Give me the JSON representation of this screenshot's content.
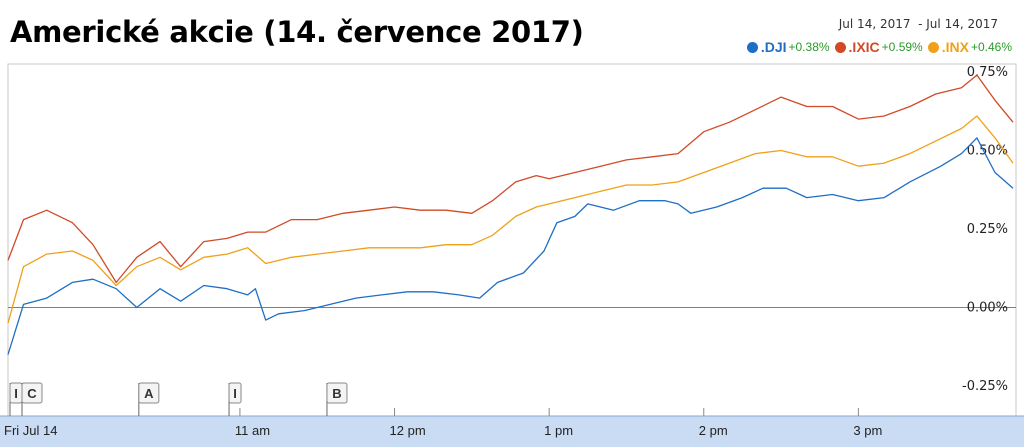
{
  "title": "Americké akcie (14. července 2017)",
  "date_range": "Jul 14, 2017  - Jul 14, 2017",
  "chart_data": {
    "type": "line",
    "x_range": [
      "09:30",
      "16:00"
    ],
    "x_ticks": [
      {
        "label": "Fri Jul 14",
        "time": "09:30"
      },
      {
        "label": "11 am",
        "time": "11:00"
      },
      {
        "label": "12 pm",
        "time": "12:00"
      },
      {
        "label": "1 pm",
        "time": "13:00"
      },
      {
        "label": "2 pm",
        "time": "14:00"
      },
      {
        "label": "3 pm",
        "time": "15:00"
      }
    ],
    "y_ticks": [
      "0.75%",
      "0.50%",
      "0.25%",
      "0.00%",
      "-0.25%"
    ],
    "ylim": [
      -0.25,
      0.75
    ],
    "baseline": 0,
    "grid": false,
    "legend_position": "top-right",
    "series": [
      {
        "name": ".DJI",
        "change": "+0.38%",
        "color": "#1e6fc4",
        "points": [
          [
            "09:30",
            -0.15
          ],
          [
            "09:36",
            0.01
          ],
          [
            "09:45",
            0.03
          ],
          [
            "09:55",
            0.08
          ],
          [
            "10:03",
            0.09
          ],
          [
            "10:12",
            0.06
          ],
          [
            "10:20",
            0.0
          ],
          [
            "10:29",
            0.06
          ],
          [
            "10:37",
            0.02
          ],
          [
            "10:46",
            0.07
          ],
          [
            "10:55",
            0.06
          ],
          [
            "11:03",
            0.04
          ],
          [
            "11:06",
            0.06
          ],
          [
            "11:10",
            -0.04
          ],
          [
            "11:15",
            -0.02
          ],
          [
            "11:25",
            -0.01
          ],
          [
            "11:35",
            0.01
          ],
          [
            "11:45",
            0.03
          ],
          [
            "11:55",
            0.04
          ],
          [
            "12:05",
            0.05
          ],
          [
            "12:15",
            0.05
          ],
          [
            "12:25",
            0.04
          ],
          [
            "12:33",
            0.03
          ],
          [
            "12:40",
            0.08
          ],
          [
            "12:50",
            0.11
          ],
          [
            "12:58",
            0.18
          ],
          [
            "13:03",
            0.27
          ],
          [
            "13:10",
            0.29
          ],
          [
            "13:15",
            0.33
          ],
          [
            "13:25",
            0.31
          ],
          [
            "13:35",
            0.34
          ],
          [
            "13:45",
            0.34
          ],
          [
            "13:50",
            0.33
          ],
          [
            "13:55",
            0.3
          ],
          [
            "14:05",
            0.32
          ],
          [
            "14:15",
            0.35
          ],
          [
            "14:23",
            0.38
          ],
          [
            "14:32",
            0.38
          ],
          [
            "14:40",
            0.35
          ],
          [
            "14:50",
            0.36
          ],
          [
            "15:00",
            0.34
          ],
          [
            "15:10",
            0.35
          ],
          [
            "15:20",
            0.4
          ],
          [
            "15:32",
            0.45
          ],
          [
            "15:40",
            0.49
          ],
          [
            "15:46",
            0.54
          ],
          [
            "15:53",
            0.43
          ],
          [
            "16:00",
            0.38
          ]
        ]
      },
      {
        "name": ".IXIC",
        "change": "+0.59%",
        "color": "#d14a26",
        "points": [
          [
            "09:30",
            0.15
          ],
          [
            "09:36",
            0.28
          ],
          [
            "09:45",
            0.31
          ],
          [
            "09:55",
            0.27
          ],
          [
            "10:03",
            0.2
          ],
          [
            "10:12",
            0.08
          ],
          [
            "10:20",
            0.16
          ],
          [
            "10:29",
            0.21
          ],
          [
            "10:37",
            0.13
          ],
          [
            "10:46",
            0.21
          ],
          [
            "10:55",
            0.22
          ],
          [
            "11:03",
            0.24
          ],
          [
            "11:10",
            0.24
          ],
          [
            "11:20",
            0.28
          ],
          [
            "11:30",
            0.28
          ],
          [
            "11:40",
            0.3
          ],
          [
            "11:50",
            0.31
          ],
          [
            "12:00",
            0.32
          ],
          [
            "12:10",
            0.31
          ],
          [
            "12:20",
            0.31
          ],
          [
            "12:30",
            0.3
          ],
          [
            "12:38",
            0.34
          ],
          [
            "12:47",
            0.4
          ],
          [
            "12:55",
            0.42
          ],
          [
            "13:00",
            0.41
          ],
          [
            "13:10",
            0.43
          ],
          [
            "13:20",
            0.45
          ],
          [
            "13:30",
            0.47
          ],
          [
            "13:40",
            0.48
          ],
          [
            "13:50",
            0.49
          ],
          [
            "14:00",
            0.56
          ],
          [
            "14:10",
            0.59
          ],
          [
            "14:20",
            0.63
          ],
          [
            "14:30",
            0.67
          ],
          [
            "14:40",
            0.64
          ],
          [
            "14:50",
            0.64
          ],
          [
            "15:00",
            0.6
          ],
          [
            "15:10",
            0.61
          ],
          [
            "15:20",
            0.64
          ],
          [
            "15:30",
            0.68
          ],
          [
            "15:40",
            0.7
          ],
          [
            "15:46",
            0.74
          ],
          [
            "15:53",
            0.66
          ],
          [
            "16:00",
            0.59
          ]
        ]
      },
      {
        "name": ".INX",
        "change": "+0.46%",
        "color": "#f0a019",
        "points": [
          [
            "09:30",
            -0.05
          ],
          [
            "09:36",
            0.13
          ],
          [
            "09:45",
            0.17
          ],
          [
            "09:55",
            0.18
          ],
          [
            "10:03",
            0.15
          ],
          [
            "10:12",
            0.07
          ],
          [
            "10:20",
            0.13
          ],
          [
            "10:29",
            0.16
          ],
          [
            "10:37",
            0.12
          ],
          [
            "10:46",
            0.16
          ],
          [
            "10:55",
            0.17
          ],
          [
            "11:03",
            0.19
          ],
          [
            "11:10",
            0.14
          ],
          [
            "11:20",
            0.16
          ],
          [
            "11:30",
            0.17
          ],
          [
            "11:40",
            0.18
          ],
          [
            "11:50",
            0.19
          ],
          [
            "12:00",
            0.19
          ],
          [
            "12:10",
            0.19
          ],
          [
            "12:20",
            0.2
          ],
          [
            "12:30",
            0.2
          ],
          [
            "12:38",
            0.23
          ],
          [
            "12:47",
            0.29
          ],
          [
            "12:55",
            0.32
          ],
          [
            "13:00",
            0.33
          ],
          [
            "13:10",
            0.35
          ],
          [
            "13:20",
            0.37
          ],
          [
            "13:30",
            0.39
          ],
          [
            "13:40",
            0.39
          ],
          [
            "13:50",
            0.4
          ],
          [
            "14:00",
            0.43
          ],
          [
            "14:10",
            0.46
          ],
          [
            "14:20",
            0.49
          ],
          [
            "14:30",
            0.5
          ],
          [
            "14:40",
            0.48
          ],
          [
            "14:50",
            0.48
          ],
          [
            "15:00",
            0.45
          ],
          [
            "15:10",
            0.46
          ],
          [
            "15:20",
            0.49
          ],
          [
            "15:30",
            0.53
          ],
          [
            "15:40",
            0.57
          ],
          [
            "15:46",
            0.61
          ],
          [
            "15:53",
            0.54
          ],
          [
            "16:00",
            0.46
          ]
        ]
      }
    ],
    "annotations": [
      {
        "labels": [
          "I",
          "C"
        ],
        "time": "09:30"
      },
      {
        "labels": [
          "A"
        ],
        "time": "10:20"
      },
      {
        "labels": [
          "I"
        ],
        "time": "10:55"
      },
      {
        "labels": [
          "B"
        ],
        "time": "11:33"
      }
    ]
  }
}
